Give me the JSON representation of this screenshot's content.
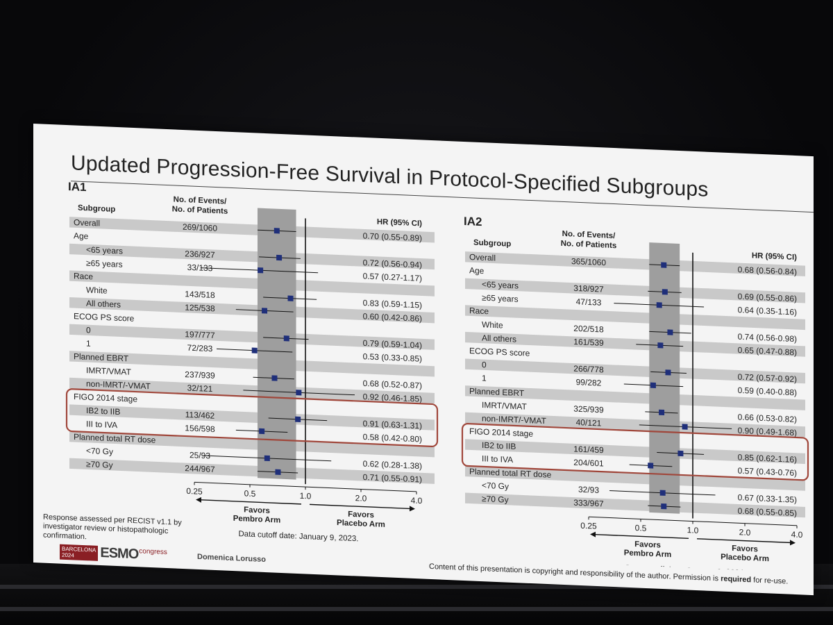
{
  "slide": {
    "title": "Updated Progression-Free Survival in Protocol-Specified Subgroups",
    "footnote": "Response assessed per RECIST v1.1 by investigator review or histopathologic confirmation.",
    "logo": {
      "city": "BARCELONA",
      "year": "2024",
      "brand": "ESMO",
      "suffix": "congress"
    },
    "author": "Domenica Lorusso",
    "copyright_pre": "Content of this presentation is copyright and responsibility of the author. Permission is ",
    "copyright_bold": "required",
    "copyright_post": " for re-use."
  },
  "colors": {
    "marker": "#1f2f7a",
    "band": "#9e9e9e",
    "stripe": "#c9c9c9",
    "highlight": "#a0463a"
  },
  "chart_data": [
    {
      "type": "forest",
      "title": "IA1",
      "col_subgroup": "Subgroup",
      "col_events_1": "No. of Events/",
      "col_events_2": "No. of Patients",
      "col_hr": "HR (95% CI)",
      "x_scale": "log2",
      "x_ticks": [
        "0.25",
        "0.5",
        "1.0",
        "2.0",
        "4.0"
      ],
      "xlim": [
        0.25,
        4.0
      ],
      "reference_line": 1.0,
      "left_label_1": "Favors",
      "left_label_2": "Pembro Arm",
      "right_label_1": "Favors",
      "right_label_2": "Placebo Arm",
      "cutoff": "Data cutoff date: January 9, 2023.",
      "highlight_group": "FIGO 2014 stage",
      "rows": [
        {
          "label": "Overall",
          "events": "269/1060",
          "hr": 0.7,
          "lo": 0.55,
          "hi": 0.89,
          "ci_text": "0.70 (0.55-0.89)",
          "indent": 0
        },
        {
          "label": "Age",
          "header": true
        },
        {
          "label": "<65 years",
          "events": "236/927",
          "hr": 0.72,
          "lo": 0.56,
          "hi": 0.94,
          "ci_text": "0.72 (0.56-0.94)",
          "indent": 1
        },
        {
          "label": "≥65 years",
          "events": "33/133",
          "hr": 0.57,
          "lo": 0.27,
          "hi": 1.17,
          "ci_text": "0.57 (0.27-1.17)",
          "indent": 1
        },
        {
          "label": "Race",
          "header": true
        },
        {
          "label": "White",
          "events": "143/518",
          "hr": 0.83,
          "lo": 0.59,
          "hi": 1.15,
          "ci_text": "0.83 (0.59-1.15)",
          "indent": 1
        },
        {
          "label": "All others",
          "events": "125/538",
          "hr": 0.6,
          "lo": 0.42,
          "hi": 0.86,
          "ci_text": "0.60 (0.42-0.86)",
          "indent": 1
        },
        {
          "label": "ECOG PS score",
          "header": true
        },
        {
          "label": "0",
          "events": "197/777",
          "hr": 0.79,
          "lo": 0.59,
          "hi": 1.04,
          "ci_text": "0.79 (0.59-1.04)",
          "indent": 1
        },
        {
          "label": "1",
          "events": "72/283",
          "hr": 0.53,
          "lo": 0.33,
          "hi": 0.85,
          "ci_text": "0.53 (0.33-0.85)",
          "indent": 1
        },
        {
          "label": "Planned EBRT",
          "header": true
        },
        {
          "label": "IMRT/VMAT",
          "events": "237/939",
          "hr": 0.68,
          "lo": 0.52,
          "hi": 0.87,
          "ci_text": "0.68 (0.52-0.87)",
          "indent": 1
        },
        {
          "label": "non-IMRT/-VMAT",
          "events": "32/121",
          "hr": 0.92,
          "lo": 0.46,
          "hi": 1.85,
          "ci_text": "0.92 (0.46-1.85)",
          "indent": 1
        },
        {
          "label": "FIGO 2014 stage",
          "header": true
        },
        {
          "label": "IB2 to IIB",
          "events": "113/462",
          "hr": 0.91,
          "lo": 0.63,
          "hi": 1.31,
          "ci_text": "0.91 (0.63-1.31)",
          "indent": 1
        },
        {
          "label": "III to IVA",
          "events": "156/598",
          "hr": 0.58,
          "lo": 0.42,
          "hi": 0.8,
          "ci_text": "0.58 (0.42-0.80)",
          "indent": 1
        },
        {
          "label": "Planned total RT dose",
          "header": true
        },
        {
          "label": "<70 Gy",
          "events": "25/93",
          "hr": 0.62,
          "lo": 0.28,
          "hi": 1.38,
          "ci_text": "0.62 (0.28-1.38)",
          "indent": 1
        },
        {
          "label": "≥70 Gy",
          "events": "244/967",
          "hr": 0.71,
          "lo": 0.55,
          "hi": 0.91,
          "ci_text": "0.71 (0.55-0.91)",
          "indent": 1
        }
      ]
    },
    {
      "type": "forest",
      "title": "IA2",
      "col_subgroup": "Subgroup",
      "col_events_1": "No. of Events/",
      "col_events_2": "No. of Patients",
      "col_hr": "HR (95% CI)",
      "x_scale": "log2",
      "x_ticks": [
        "0.25",
        "0.5",
        "1.0",
        "2.0",
        "4.0"
      ],
      "xlim": [
        0.25,
        4.0
      ],
      "reference_line": 1.0,
      "left_label_1": "Favors",
      "left_label_2": "Pembro Arm",
      "right_label_1": "Favors",
      "right_label_2": "Placebo Arm",
      "cutoff": "Data cutoff date: January 8, 2024.",
      "highlight_group": "FIGO 2014 stage",
      "rows": [
        {
          "label": "Overall",
          "events": "365/1060",
          "hr": 0.68,
          "lo": 0.56,
          "hi": 0.84,
          "ci_text": "0.68 (0.56-0.84)",
          "indent": 0
        },
        {
          "label": "Age",
          "header": true
        },
        {
          "label": "<65 years",
          "events": "318/927",
          "hr": 0.69,
          "lo": 0.55,
          "hi": 0.86,
          "ci_text": "0.69 (0.55-0.86)",
          "indent": 1
        },
        {
          "label": "≥65 years",
          "events": "47/133",
          "hr": 0.64,
          "lo": 0.35,
          "hi": 1.16,
          "ci_text": "0.64 (0.35-1.16)",
          "indent": 1
        },
        {
          "label": "Race",
          "header": true
        },
        {
          "label": "White",
          "events": "202/518",
          "hr": 0.74,
          "lo": 0.56,
          "hi": 0.98,
          "ci_text": "0.74 (0.56-0.98)",
          "indent": 1
        },
        {
          "label": "All others",
          "events": "161/539",
          "hr": 0.65,
          "lo": 0.47,
          "hi": 0.88,
          "ci_text": "0.65 (0.47-0.88)",
          "indent": 1
        },
        {
          "label": "ECOG PS score",
          "header": true
        },
        {
          "label": "0",
          "events": "266/778",
          "hr": 0.72,
          "lo": 0.57,
          "hi": 0.92,
          "ci_text": "0.72 (0.57-0.92)",
          "indent": 1
        },
        {
          "label": "1",
          "events": "99/282",
          "hr": 0.59,
          "lo": 0.4,
          "hi": 0.88,
          "ci_text": "0.59 (0.40-0.88)",
          "indent": 1
        },
        {
          "label": "Planned EBRT",
          "header": true
        },
        {
          "label": "IMRT/VMAT",
          "events": "325/939",
          "hr": 0.66,
          "lo": 0.53,
          "hi": 0.82,
          "ci_text": "0.66 (0.53-0.82)",
          "indent": 1
        },
        {
          "label": "non-IMRT/-VMAT",
          "events": "40/121",
          "hr": 0.9,
          "lo": 0.49,
          "hi": 1.68,
          "ci_text": "0.90 (0.49-1.68)",
          "indent": 1
        },
        {
          "label": "FIGO 2014 stage",
          "header": true
        },
        {
          "label": "IB2 to IIB",
          "events": "161/459",
          "hr": 0.85,
          "lo": 0.62,
          "hi": 1.16,
          "ci_text": "0.85 (0.62-1.16)",
          "indent": 1
        },
        {
          "label": "III to IVA",
          "events": "204/601",
          "hr": 0.57,
          "lo": 0.43,
          "hi": 0.76,
          "ci_text": "0.57 (0.43-0.76)",
          "indent": 1
        },
        {
          "label": "Planned total RT dose",
          "header": true
        },
        {
          "label": "<70 Gy",
          "events": "32/93",
          "hr": 0.67,
          "lo": 0.33,
          "hi": 1.35,
          "ci_text": "0.67 (0.33-1.35)",
          "indent": 1
        },
        {
          "label": "≥70 Gy",
          "events": "333/967",
          "hr": 0.68,
          "lo": 0.55,
          "hi": 0.85,
          "ci_text": "0.68 (0.55-0.85)",
          "indent": 1
        }
      ]
    }
  ]
}
